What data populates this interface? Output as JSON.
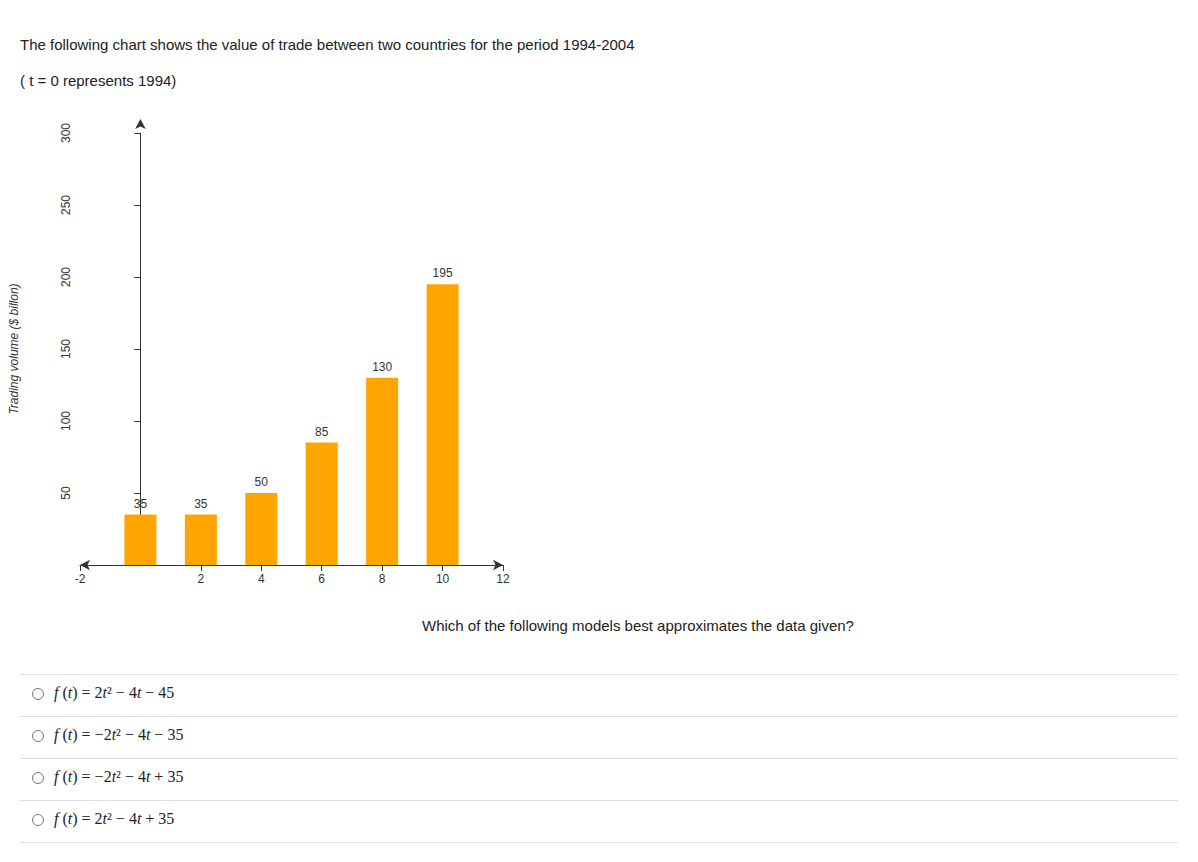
{
  "header": {
    "lines": [
      "The following chart shows the value of trade between two countries for the period 1994-2004",
      "( t = 0 represents 1994)"
    ]
  },
  "chart_data": {
    "type": "bar",
    "x": [
      0,
      2,
      4,
      6,
      8,
      10
    ],
    "values": [
      35,
      35,
      50,
      85,
      130,
      195
    ],
    "y_label": "Trading volume ($ billon)",
    "xlim": [
      -2,
      12
    ],
    "xticks": [
      -2,
      2,
      4,
      6,
      8,
      10,
      12
    ],
    "ylim": [
      0,
      300
    ],
    "yticks": [
      50,
      100,
      150,
      200,
      250,
      300
    ],
    "color": "#FFA500",
    "data_labels": true,
    "grid": false
  },
  "question": "Which of the following models best approximates the data given?",
  "options": [
    "f (t) = 2t² − 4t − 45",
    "f (t) = −2t² − 4t − 35",
    "f (t) = −2t² − 4t + 35",
    "f (t) = 2t² − 4t + 35"
  ]
}
